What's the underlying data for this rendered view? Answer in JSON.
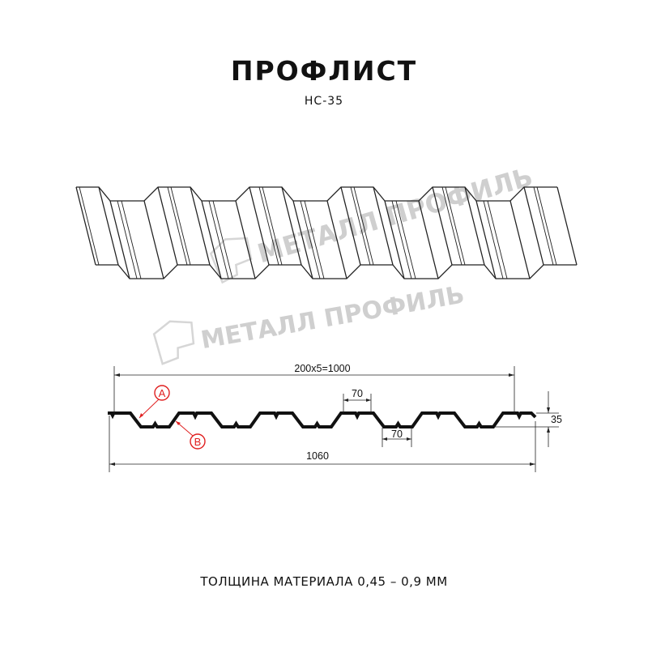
{
  "header": {
    "title": "ПРОФЛИСТ",
    "model": "НС-35"
  },
  "watermark": {
    "text": "МЕТАЛЛ ПРОФИЛЬ",
    "color": "#cfcfcf"
  },
  "section": {
    "dimensions": {
      "pitch_total": "200x5=1000",
      "top_flange": "70",
      "bottom_flange": "70",
      "height": "35",
      "full_width": "1060"
    },
    "callouts": [
      {
        "label": "A"
      },
      {
        "label": "B"
      }
    ],
    "callout_color": "#e02020"
  },
  "footer": {
    "thickness": "ТОЛЩИНА МАТЕРИАЛА 0,45 – 0,9 ММ"
  }
}
